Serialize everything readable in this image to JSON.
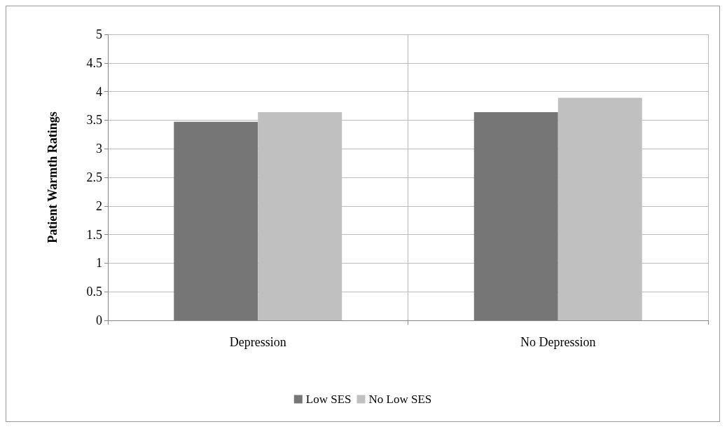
{
  "chart_data": {
    "type": "bar",
    "ylabel": "Patient Warmth Ratings",
    "categories": [
      "Depression",
      "No Depression"
    ],
    "series": [
      {
        "name": "Low SES",
        "color": "#767676",
        "values": [
          3.47,
          3.64
        ]
      },
      {
        "name": "No Low SES",
        "color": "#c0c0c0",
        "values": [
          3.64,
          3.89
        ]
      }
    ],
    "ylim": [
      0,
      5
    ],
    "yticks": [
      0,
      0.5,
      1,
      1.5,
      2,
      2.5,
      3,
      3.5,
      4,
      4.5,
      5
    ],
    "grid": true,
    "legend": "bottom"
  }
}
